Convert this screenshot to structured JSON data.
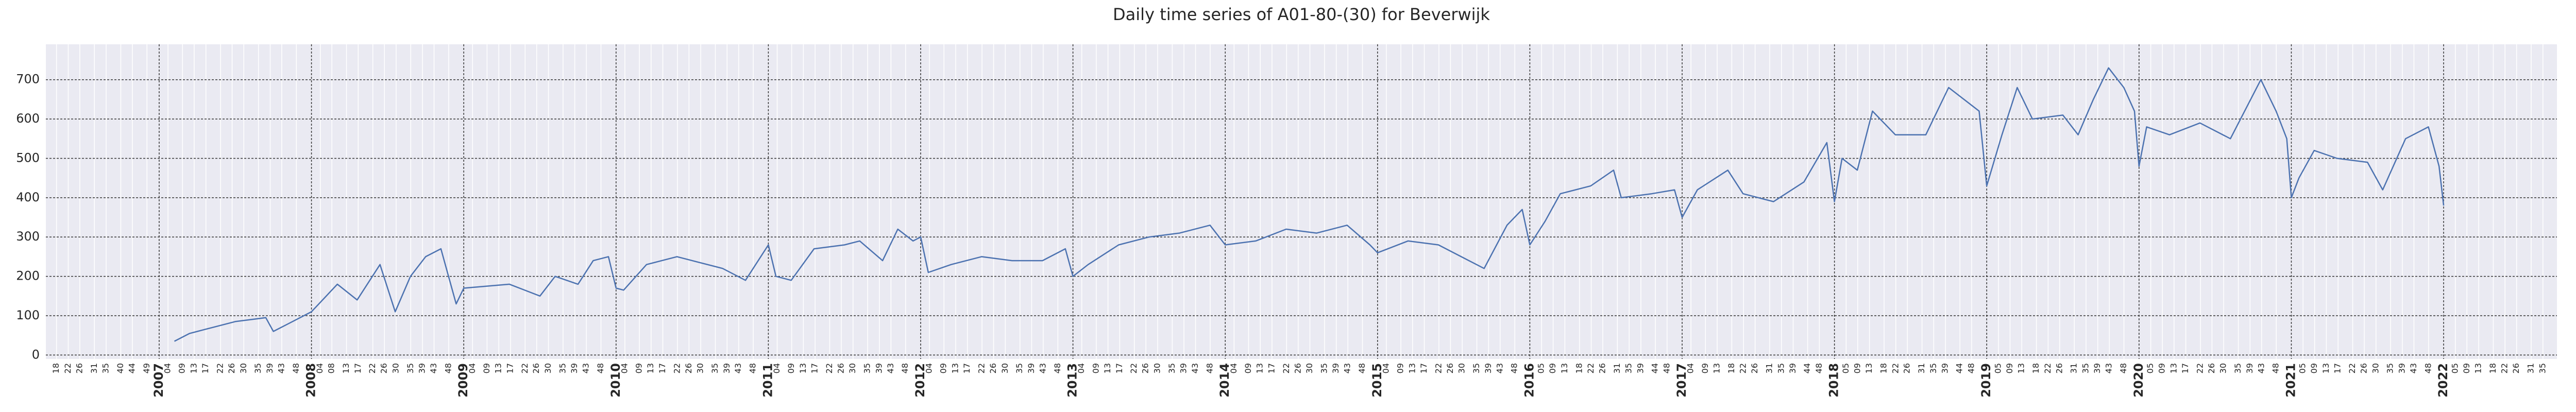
{
  "chart_data": {
    "type": "line",
    "title": "Daily time series of A01-80-(30) for Beverwijk",
    "x": [
      2007.1,
      2007.2,
      2007.3,
      2007.4,
      2007.5,
      2007.6,
      2007.7,
      2007.75,
      2007.85,
      2007.95,
      2008.0,
      2008.17,
      2008.3,
      2008.45,
      2008.55,
      2008.65,
      2008.75,
      2008.85,
      2008.95,
      2009.0,
      2009.3,
      2009.5,
      2009.6,
      2009.75,
      2009.85,
      2009.95,
      2010.0,
      2010.05,
      2010.2,
      2010.4,
      2010.5,
      2010.7,
      2010.85,
      2010.95,
      2011.0,
      2011.05,
      2011.15,
      2011.3,
      2011.5,
      2011.6,
      2011.75,
      2011.85,
      2011.95,
      2012.0,
      2012.05,
      2012.2,
      2012.4,
      2012.6,
      2012.8,
      2012.95,
      2013.0,
      2013.1,
      2013.3,
      2013.5,
      2013.7,
      2013.9,
      2014.0,
      2014.2,
      2014.4,
      2014.6,
      2014.8,
      2014.95,
      2015.0,
      2015.2,
      2015.4,
      2015.6,
      2015.7,
      2015.85,
      2015.95,
      2016.0,
      2016.1,
      2016.2,
      2016.4,
      2016.55,
      2016.6,
      2016.8,
      2016.95,
      2017.0,
      2017.1,
      2017.3,
      2017.4,
      2017.6,
      2017.8,
      2017.95,
      2018.0,
      2018.05,
      2018.15,
      2018.25,
      2018.4,
      2018.6,
      2018.75,
      2018.85,
      2018.95,
      2019.0,
      2019.1,
      2019.2,
      2019.3,
      2019.5,
      2019.6,
      2019.7,
      2019.8,
      2019.9,
      2019.97,
      2020.0,
      2020.05,
      2020.2,
      2020.4,
      2020.6,
      2020.8,
      2020.9,
      2020.97,
      2021.0,
      2021.05,
      2021.15,
      2021.3,
      2021.5,
      2021.6,
      2021.75,
      2021.9,
      2021.97,
      2022.0
    ],
    "series": [
      {
        "color": "#4c72b0",
        "values": [
          35,
          55,
          65,
          75,
          85,
          90,
          95,
          60,
          80,
          100,
          110,
          180,
          140,
          230,
          110,
          200,
          250,
          270,
          130,
          170,
          180,
          150,
          200,
          180,
          240,
          250,
          170,
          165,
          230,
          250,
          240,
          220,
          190,
          250,
          280,
          200,
          190,
          270,
          280,
          290,
          240,
          320,
          290,
          300,
          210,
          230,
          250,
          240,
          240,
          270,
          200,
          230,
          280,
          300,
          310,
          330,
          280,
          290,
          320,
          310,
          330,
          280,
          260,
          290,
          280,
          240,
          220,
          330,
          370,
          280,
          340,
          410,
          430,
          470,
          400,
          410,
          420,
          350,
          420,
          470,
          410,
          390,
          440,
          540,
          390,
          500,
          470,
          620,
          560,
          560,
          680,
          650,
          620,
          430,
          560,
          680,
          600,
          610,
          560,
          650,
          730,
          680,
          620,
          480,
          580,
          560,
          590,
          550,
          700,
          620,
          550,
          400,
          450,
          520,
          500,
          490,
          420,
          550,
          580,
          480,
          380
        ]
      }
    ],
    "xlim": [
      2006.256,
      2022.744
    ],
    "ylim": [
      -10,
      790
    ],
    "xticks": [
      2007,
      2008,
      2009,
      2010,
      2011,
      2012,
      2013,
      2014,
      2015,
      2016,
      2017,
      2018,
      2019,
      2020,
      2021,
      2022
    ],
    "yticks": [
      0,
      100,
      200,
      300,
      400,
      500,
      600,
      700
    ],
    "minor_xticks": [
      {
        "value": 2006.326,
        "label": "18"
      },
      {
        "value": 2006.403,
        "label": "22"
      },
      {
        "value": 2006.479,
        "label": "26"
      },
      {
        "value": 2006.575,
        "label": "31"
      },
      {
        "value": 2006.652,
        "label": "35"
      },
      {
        "value": 2006.748,
        "label": "40"
      },
      {
        "value": 2006.824,
        "label": "44"
      },
      {
        "value": 2006.92,
        "label": "49"
      },
      {
        "value": 2007.058,
        "label": "04"
      },
      {
        "value": 2007.153,
        "label": "09"
      },
      {
        "value": 2007.23,
        "label": "13"
      },
      {
        "value": 2007.307,
        "label": "17"
      },
      {
        "value": 2007.403,
        "label": "22"
      },
      {
        "value": 2007.479,
        "label": "26"
      },
      {
        "value": 2007.556,
        "label": "30"
      },
      {
        "value": 2007.652,
        "label": "35"
      },
      {
        "value": 2007.729,
        "label": "39"
      },
      {
        "value": 2007.805,
        "label": "43"
      },
      {
        "value": 2007.901,
        "label": "48"
      },
      {
        "value": 2008.058,
        "label": "04"
      },
      {
        "value": 2008.134,
        "label": "08"
      },
      {
        "value": 2008.23,
        "label": "13"
      },
      {
        "value": 2008.307,
        "label": "17"
      },
      {
        "value": 2008.403,
        "label": "22"
      },
      {
        "value": 2008.479,
        "label": "26"
      },
      {
        "value": 2008.556,
        "label": "30"
      },
      {
        "value": 2008.652,
        "label": "35"
      },
      {
        "value": 2008.729,
        "label": "39"
      },
      {
        "value": 2008.805,
        "label": "43"
      },
      {
        "value": 2008.901,
        "label": "48"
      },
      {
        "value": 2009.058,
        "label": "04"
      },
      {
        "value": 2009.153,
        "label": "09"
      },
      {
        "value": 2009.23,
        "label": "13"
      },
      {
        "value": 2009.307,
        "label": "17"
      },
      {
        "value": 2009.403,
        "label": "22"
      },
      {
        "value": 2009.479,
        "label": "26"
      },
      {
        "value": 2009.556,
        "label": "30"
      },
      {
        "value": 2009.652,
        "label": "35"
      },
      {
        "value": 2009.729,
        "label": "39"
      },
      {
        "value": 2009.805,
        "label": "43"
      },
      {
        "value": 2009.901,
        "label": "48"
      },
      {
        "value": 2010.058,
        "label": "04"
      },
      {
        "value": 2010.153,
        "label": "09"
      },
      {
        "value": 2010.23,
        "label": "13"
      },
      {
        "value": 2010.307,
        "label": "17"
      },
      {
        "value": 2010.403,
        "label": "22"
      },
      {
        "value": 2010.479,
        "label": "26"
      },
      {
        "value": 2010.556,
        "label": "30"
      },
      {
        "value": 2010.652,
        "label": "35"
      },
      {
        "value": 2010.729,
        "label": "39"
      },
      {
        "value": 2010.805,
        "label": "43"
      },
      {
        "value": 2010.901,
        "label": "48"
      },
      {
        "value": 2011.058,
        "label": "04"
      },
      {
        "value": 2011.153,
        "label": "09"
      },
      {
        "value": 2011.23,
        "label": "13"
      },
      {
        "value": 2011.307,
        "label": "17"
      },
      {
        "value": 2011.403,
        "label": "22"
      },
      {
        "value": 2011.479,
        "label": "26"
      },
      {
        "value": 2011.556,
        "label": "30"
      },
      {
        "value": 2011.652,
        "label": "35"
      },
      {
        "value": 2011.729,
        "label": "39"
      },
      {
        "value": 2011.805,
        "label": "43"
      },
      {
        "value": 2011.901,
        "label": "48"
      },
      {
        "value": 2012.058,
        "label": "04"
      },
      {
        "value": 2012.153,
        "label": "09"
      },
      {
        "value": 2012.23,
        "label": "13"
      },
      {
        "value": 2012.307,
        "label": "17"
      },
      {
        "value": 2012.403,
        "label": "22"
      },
      {
        "value": 2012.479,
        "label": "26"
      },
      {
        "value": 2012.556,
        "label": "30"
      },
      {
        "value": 2012.652,
        "label": "35"
      },
      {
        "value": 2012.729,
        "label": "39"
      },
      {
        "value": 2012.805,
        "label": "43"
      },
      {
        "value": 2012.901,
        "label": "48"
      },
      {
        "value": 2013.058,
        "label": "04"
      },
      {
        "value": 2013.153,
        "label": "09"
      },
      {
        "value": 2013.23,
        "label": "13"
      },
      {
        "value": 2013.307,
        "label": "17"
      },
      {
        "value": 2013.403,
        "label": "22"
      },
      {
        "value": 2013.479,
        "label": "26"
      },
      {
        "value": 2013.556,
        "label": "30"
      },
      {
        "value": 2013.652,
        "label": "35"
      },
      {
        "value": 2013.729,
        "label": "39"
      },
      {
        "value": 2013.805,
        "label": "43"
      },
      {
        "value": 2013.901,
        "label": "48"
      },
      {
        "value": 2014.058,
        "label": "04"
      },
      {
        "value": 2014.153,
        "label": "09"
      },
      {
        "value": 2014.23,
        "label": "13"
      },
      {
        "value": 2014.307,
        "label": "17"
      },
      {
        "value": 2014.403,
        "label": "22"
      },
      {
        "value": 2014.479,
        "label": "26"
      },
      {
        "value": 2014.556,
        "label": "30"
      },
      {
        "value": 2014.652,
        "label": "35"
      },
      {
        "value": 2014.729,
        "label": "39"
      },
      {
        "value": 2014.805,
        "label": "43"
      },
      {
        "value": 2014.901,
        "label": "48"
      },
      {
        "value": 2015.058,
        "label": "04"
      },
      {
        "value": 2015.153,
        "label": "09"
      },
      {
        "value": 2015.23,
        "label": "13"
      },
      {
        "value": 2015.307,
        "label": "17"
      },
      {
        "value": 2015.403,
        "label": "22"
      },
      {
        "value": 2015.479,
        "label": "26"
      },
      {
        "value": 2015.556,
        "label": "30"
      },
      {
        "value": 2015.652,
        "label": "35"
      },
      {
        "value": 2015.729,
        "label": "39"
      },
      {
        "value": 2015.805,
        "label": "43"
      },
      {
        "value": 2015.901,
        "label": "48"
      },
      {
        "value": 2016.077,
        "label": "05"
      },
      {
        "value": 2016.153,
        "label": "09"
      },
      {
        "value": 2016.23,
        "label": "13"
      },
      {
        "value": 2016.326,
        "label": "18"
      },
      {
        "value": 2016.403,
        "label": "22"
      },
      {
        "value": 2016.479,
        "label": "26"
      },
      {
        "value": 2016.575,
        "label": "31"
      },
      {
        "value": 2016.652,
        "label": "35"
      },
      {
        "value": 2016.729,
        "label": "39"
      },
      {
        "value": 2016.824,
        "label": "44"
      },
      {
        "value": 2016.901,
        "label": "48"
      },
      {
        "value": 2017.058,
        "label": "04"
      },
      {
        "value": 2017.153,
        "label": "09"
      },
      {
        "value": 2017.23,
        "label": "13"
      },
      {
        "value": 2017.326,
        "label": "18"
      },
      {
        "value": 2017.403,
        "label": "22"
      },
      {
        "value": 2017.479,
        "label": "26"
      },
      {
        "value": 2017.575,
        "label": "31"
      },
      {
        "value": 2017.652,
        "label": "35"
      },
      {
        "value": 2017.729,
        "label": "39"
      },
      {
        "value": 2017.824,
        "label": "44"
      },
      {
        "value": 2017.901,
        "label": "48"
      },
      {
        "value": 2018.077,
        "label": "05"
      },
      {
        "value": 2018.153,
        "label": "09"
      },
      {
        "value": 2018.23,
        "label": "13"
      },
      {
        "value": 2018.326,
        "label": "18"
      },
      {
        "value": 2018.403,
        "label": "22"
      },
      {
        "value": 2018.479,
        "label": "26"
      },
      {
        "value": 2018.575,
        "label": "31"
      },
      {
        "value": 2018.652,
        "label": "35"
      },
      {
        "value": 2018.729,
        "label": "39"
      },
      {
        "value": 2018.824,
        "label": "44"
      },
      {
        "value": 2018.901,
        "label": "48"
      },
      {
        "value": 2019.077,
        "label": "05"
      },
      {
        "value": 2019.153,
        "label": "09"
      },
      {
        "value": 2019.23,
        "label": "13"
      },
      {
        "value": 2019.326,
        "label": "18"
      },
      {
        "value": 2019.403,
        "label": "22"
      },
      {
        "value": 2019.479,
        "label": "26"
      },
      {
        "value": 2019.575,
        "label": "31"
      },
      {
        "value": 2019.652,
        "label": "35"
      },
      {
        "value": 2019.729,
        "label": "39"
      },
      {
        "value": 2019.805,
        "label": "43"
      },
      {
        "value": 2019.901,
        "label": "48"
      },
      {
        "value": 2020.077,
        "label": "05"
      },
      {
        "value": 2020.153,
        "label": "09"
      },
      {
        "value": 2020.23,
        "label": "13"
      },
      {
        "value": 2020.307,
        "label": "17"
      },
      {
        "value": 2020.403,
        "label": "22"
      },
      {
        "value": 2020.479,
        "label": "26"
      },
      {
        "value": 2020.556,
        "label": "30"
      },
      {
        "value": 2020.652,
        "label": "35"
      },
      {
        "value": 2020.729,
        "label": "39"
      },
      {
        "value": 2020.805,
        "label": "43"
      },
      {
        "value": 2020.901,
        "label": "48"
      },
      {
        "value": 2021.077,
        "label": "05"
      },
      {
        "value": 2021.153,
        "label": "09"
      },
      {
        "value": 2021.23,
        "label": "13"
      },
      {
        "value": 2021.307,
        "label": "17"
      },
      {
        "value": 2021.403,
        "label": "22"
      },
      {
        "value": 2021.479,
        "label": "26"
      },
      {
        "value": 2021.556,
        "label": "30"
      },
      {
        "value": 2021.652,
        "label": "35"
      },
      {
        "value": 2021.729,
        "label": "39"
      },
      {
        "value": 2021.805,
        "label": "43"
      },
      {
        "value": 2021.901,
        "label": "48"
      },
      {
        "value": 2022.077,
        "label": "05"
      },
      {
        "value": 2022.153,
        "label": "09"
      },
      {
        "value": 2022.23,
        "label": "13"
      },
      {
        "value": 2022.326,
        "label": "18"
      },
      {
        "value": 2022.403,
        "label": "22"
      },
      {
        "value": 2022.479,
        "label": "26"
      },
      {
        "value": 2022.575,
        "label": "31"
      },
      {
        "value": 2022.652,
        "label": "35"
      }
    ],
    "grid": true
  }
}
